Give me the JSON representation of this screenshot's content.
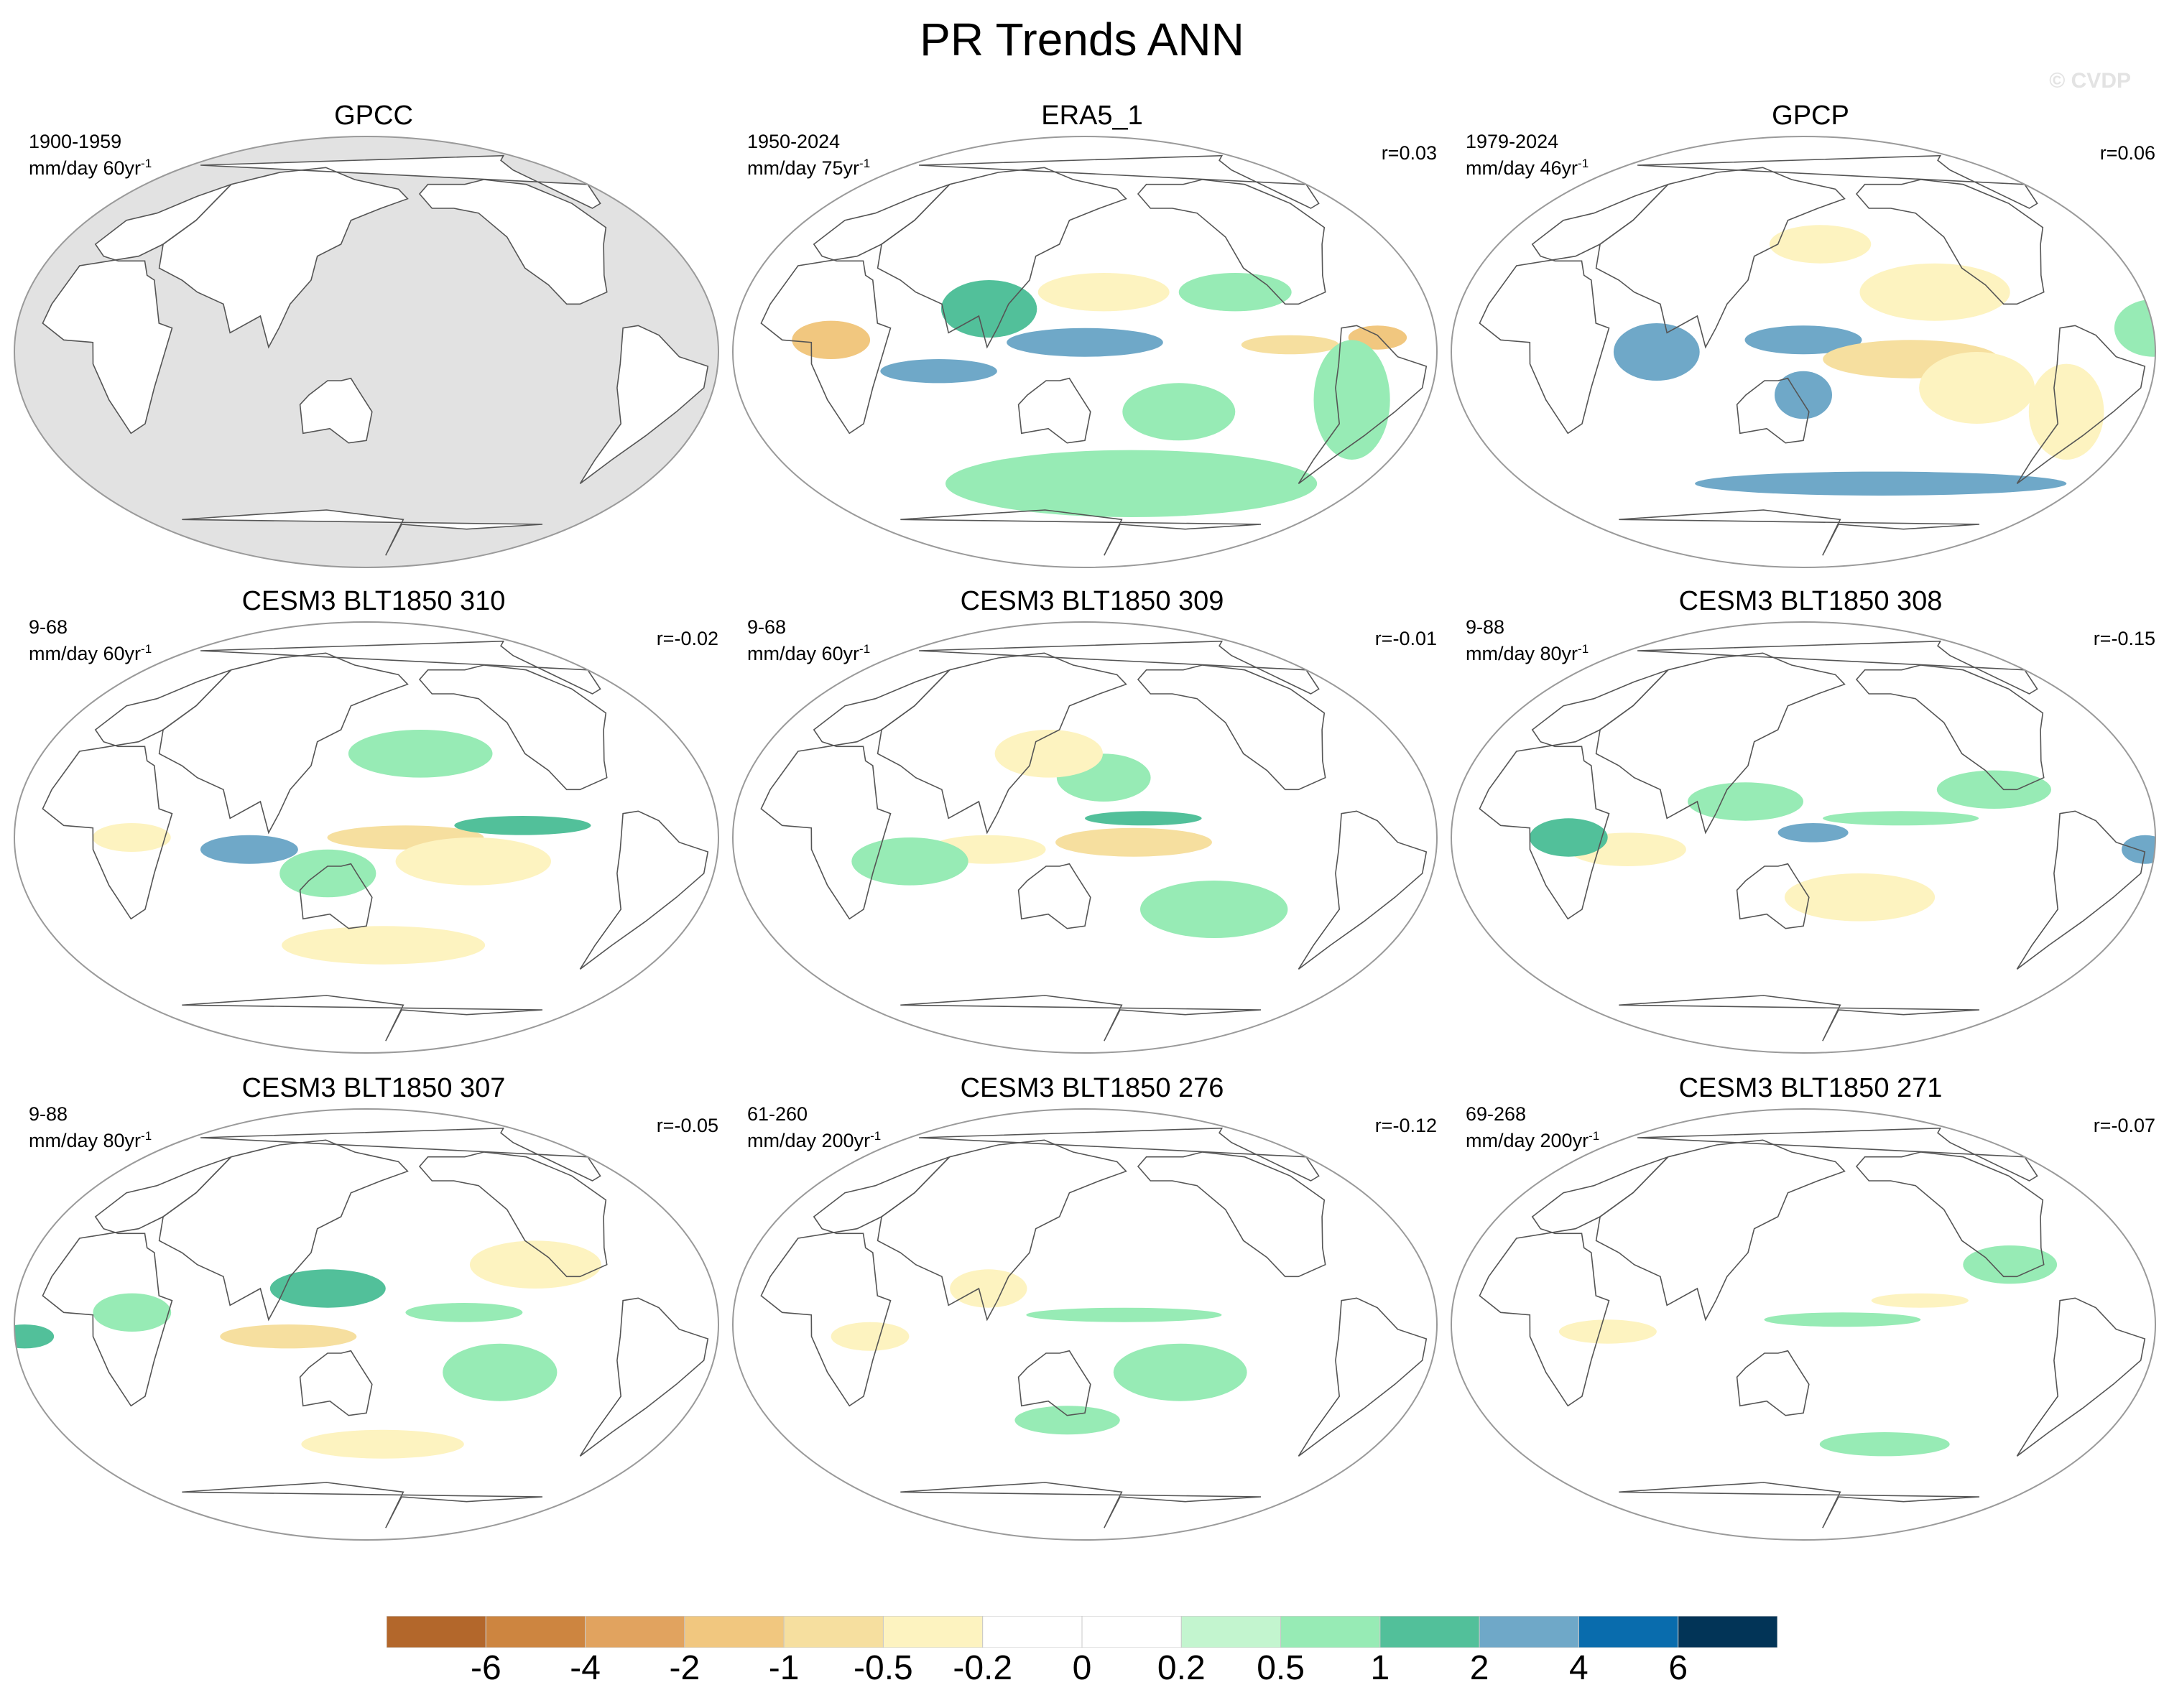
{
  "title": "PR Trends ANN",
  "watermark": "© CVDP",
  "colors": {
    "ocean_fill": "#ffffff",
    "missing_fill": "#e2e2e2",
    "coast": "#555555",
    "frame": "#9a9a9a"
  },
  "chart_data": {
    "type": "map-grid",
    "projection": "Robinson (Pacific-centered)",
    "variable": "precipitation trend",
    "season": "ANN",
    "colorbar": {
      "colors": [
        "#b3672b",
        "#cd8540",
        "#e1a35f",
        "#f1c77f",
        "#f6df9f",
        "#fdf3c0",
        "#ffffff",
        "#ffffff",
        "#c3f5cf",
        "#97ebb5",
        "#52c09a",
        "#6fa8c8",
        "#096cad",
        "#023457"
      ],
      "tick_labels": [
        "-6",
        "-4",
        "-2",
        "-1",
        "-0.5",
        "-0.2",
        "0",
        "0.2",
        "0.5",
        "1",
        "2",
        "4",
        "6"
      ],
      "levels": [
        -6,
        -4,
        -2,
        -1,
        -0.5,
        -0.2,
        0,
        0.2,
        0.5,
        1,
        2,
        4,
        6
      ]
    },
    "panels": [
      {
        "title": "GPCC",
        "period": "1900-1959",
        "units_prefix": "mm/day 60yr",
        "units_sup": "-1",
        "r": "",
        "land_only": true,
        "blobs": []
      },
      {
        "title": "ERA5_1",
        "period": "1950-2024",
        "units_prefix": "mm/day 75yr",
        "units_sup": "-1",
        "r": "r=0.03",
        "land_only": false,
        "blobs": [
          {
            "lon": 165,
            "lat": 3,
            "rx": 22,
            "ry": 3,
            "v": 4
          },
          {
            "lon": 150,
            "lat": 4,
            "rx": 40,
            "ry": 6,
            "v": 2
          },
          {
            "lon": 100,
            "lat": 18,
            "rx": 25,
            "ry": 12,
            "v": 1
          },
          {
            "lon": 75,
            "lat": -8,
            "rx": 30,
            "ry": 5,
            "v": 2
          },
          {
            "lon": 20,
            "lat": 5,
            "rx": 20,
            "ry": 8,
            "v": -2
          },
          {
            "lon": 255,
            "lat": 3,
            "rx": 25,
            "ry": 4,
            "v": -1
          },
          {
            "lon": 300,
            "lat": 6,
            "rx": 15,
            "ry": 5,
            "v": -2
          },
          {
            "lon": 160,
            "lat": 25,
            "rx": 35,
            "ry": 8,
            "v": -0.5
          },
          {
            "lon": 230,
            "lat": 25,
            "rx": 30,
            "ry": 8,
            "v": 0.5
          },
          {
            "lon": 180,
            "lat": -55,
            "rx": 120,
            "ry": 14,
            "v": 0.5
          },
          {
            "lon": 290,
            "lat": -20,
            "rx": 20,
            "ry": 25,
            "v": 0.5
          },
          {
            "lon": 200,
            "lat": -25,
            "rx": 30,
            "ry": 12,
            "v": 0.5
          }
        ]
      },
      {
        "title": "GPCP",
        "period": "1979-2024",
        "units_prefix": "mm/day 46yr",
        "units_sup": "-1",
        "r": "r=0.06",
        "land_only": false,
        "blobs": [
          {
            "lon": 150,
            "lat": 5,
            "rx": 30,
            "ry": 6,
            "v": 2
          },
          {
            "lon": 75,
            "lat": 0,
            "rx": 22,
            "ry": 12,
            "v": 2
          },
          {
            "lon": 205,
            "lat": -3,
            "rx": 45,
            "ry": 8,
            "v": -1
          },
          {
            "lon": 150,
            "lat": -18,
            "rx": 15,
            "ry": 10,
            "v": 2
          },
          {
            "lon": 240,
            "lat": -15,
            "rx": 30,
            "ry": 15,
            "v": -0.5
          },
          {
            "lon": 220,
            "lat": 25,
            "rx": 40,
            "ry": 12,
            "v": -0.5
          },
          {
            "lon": 160,
            "lat": 45,
            "rx": 30,
            "ry": 8,
            "v": -0.5
          },
          {
            "lon": 200,
            "lat": -55,
            "rx": 120,
            "ry": 5,
            "v": 2
          },
          {
            "lon": 330,
            "lat": 10,
            "rx": 20,
            "ry": 12,
            "v": 0.5
          },
          {
            "lon": 290,
            "lat": -25,
            "rx": 20,
            "ry": 20,
            "v": -0.5
          }
        ]
      },
      {
        "title": "CESM3 BLT1850 310",
        "period": "9-68",
        "units_prefix": "mm/day 60yr",
        "units_sup": "-1",
        "r": "r=-0.02",
        "land_only": false,
        "blobs": [
          {
            "lon": 90,
            "lat": -5,
            "rx": 25,
            "ry": 6,
            "v": 2
          },
          {
            "lon": 170,
            "lat": 0,
            "rx": 40,
            "ry": 5,
            "v": -1
          },
          {
            "lon": 205,
            "lat": -10,
            "rx": 40,
            "ry": 10,
            "v": -0.5
          },
          {
            "lon": 30,
            "lat": 0,
            "rx": 20,
            "ry": 6,
            "v": -0.5
          },
          {
            "lon": 230,
            "lat": 5,
            "rx": 35,
            "ry": 4,
            "v": 1
          },
          {
            "lon": 130,
            "lat": -15,
            "rx": 25,
            "ry": 10,
            "v": 0.5
          },
          {
            "lon": 180,
            "lat": 35,
            "rx": 40,
            "ry": 10,
            "v": 0.5
          },
          {
            "lon": 160,
            "lat": -45,
            "rx": 60,
            "ry": 8,
            "v": -0.5
          }
        ]
      },
      {
        "title": "CESM3 BLT1850 309",
        "period": "9-68",
        "units_prefix": "mm/day 60yr",
        "units_sup": "-1",
        "r": "r=-0.01",
        "land_only": false,
        "blobs": [
          {
            "lon": 175,
            "lat": -2,
            "rx": 40,
            "ry": 6,
            "v": -1
          },
          {
            "lon": 180,
            "lat": 8,
            "rx": 30,
            "ry": 3,
            "v": 1
          },
          {
            "lon": 100,
            "lat": -5,
            "rx": 30,
            "ry": 6,
            "v": -0.5
          },
          {
            "lon": 160,
            "lat": 25,
            "rx": 25,
            "ry": 10,
            "v": 0.5
          },
          {
            "lon": 130,
            "lat": 35,
            "rx": 30,
            "ry": 10,
            "v": -0.5
          },
          {
            "lon": 60,
            "lat": -10,
            "rx": 30,
            "ry": 10,
            "v": 0.5
          },
          {
            "lon": 220,
            "lat": -30,
            "rx": 40,
            "ry": 12,
            "v": 0.5
          }
        ]
      },
      {
        "title": "CESM3 BLT1850 308",
        "period": "9-88",
        "units_prefix": "mm/day 80yr",
        "units_sup": "-1",
        "r": "r=-0.15",
        "land_only": false,
        "blobs": [
          {
            "lon": 155,
            "lat": 2,
            "rx": 18,
            "ry": 4,
            "v": 2
          },
          {
            "lon": 120,
            "lat": 15,
            "rx": 30,
            "ry": 8,
            "v": 0.5
          },
          {
            "lon": 60,
            "lat": -5,
            "rx": 30,
            "ry": 7,
            "v": -0.5
          },
          {
            "lon": 30,
            "lat": 0,
            "rx": 20,
            "ry": 8,
            "v": 1
          },
          {
            "lon": 325,
            "lat": -5,
            "rx": 12,
            "ry": 6,
            "v": 2
          },
          {
            "lon": 200,
            "lat": 8,
            "rx": 40,
            "ry": 3,
            "v": 0.5
          },
          {
            "lon": 180,
            "lat": -25,
            "rx": 40,
            "ry": 10,
            "v": -0.5
          },
          {
            "lon": 250,
            "lat": 20,
            "rx": 30,
            "ry": 8,
            "v": 0.5
          }
        ]
      },
      {
        "title": "CESM3 BLT1850 307",
        "period": "9-88",
        "units_prefix": "mm/day 80yr",
        "units_sup": "-1",
        "r": "r=-0.05",
        "land_only": false,
        "blobs": [
          {
            "lon": 110,
            "lat": -5,
            "rx": 35,
            "ry": 5,
            "v": -1
          },
          {
            "lon": 200,
            "lat": 5,
            "rx": 30,
            "ry": 4,
            "v": 0.5
          },
          {
            "lon": 130,
            "lat": 15,
            "rx": 30,
            "ry": 8,
            "v": 1
          },
          {
            "lon": 30,
            "lat": 5,
            "rx": 20,
            "ry": 8,
            "v": 0.5
          },
          {
            "lon": 335,
            "lat": -5,
            "rx": 15,
            "ry": 5,
            "v": 1
          },
          {
            "lon": 240,
            "lat": 25,
            "rx": 35,
            "ry": 10,
            "v": -0.5
          },
          {
            "lon": 160,
            "lat": -50,
            "rx": 50,
            "ry": 6,
            "v": -0.5
          },
          {
            "lon": 220,
            "lat": -20,
            "rx": 30,
            "ry": 12,
            "v": 0.5
          }
        ]
      },
      {
        "title": "CESM3 BLT1850 276",
        "period": "61-260",
        "units_prefix": "mm/day 200yr",
        "units_sup": "-1",
        "r": "r=-0.12",
        "land_only": false,
        "blobs": [
          {
            "lon": 170,
            "lat": 4,
            "rx": 50,
            "ry": 3,
            "v": 0.5
          },
          {
            "lon": 100,
            "lat": 15,
            "rx": 20,
            "ry": 8,
            "v": -0.5
          },
          {
            "lon": 40,
            "lat": -5,
            "rx": 20,
            "ry": 6,
            "v": -0.5
          },
          {
            "lon": 200,
            "lat": -20,
            "rx": 35,
            "ry": 12,
            "v": 0.5
          },
          {
            "lon": 140,
            "lat": -40,
            "rx": 30,
            "ry": 6,
            "v": 0.5
          }
        ]
      },
      {
        "title": "CESM3 BLT1850 271",
        "period": "69-268",
        "units_prefix": "mm/day 200yr",
        "units_sup": "-1",
        "r": "r=-0.07",
        "land_only": false,
        "blobs": [
          {
            "lon": 170,
            "lat": 2,
            "rx": 40,
            "ry": 3,
            "v": 0.5
          },
          {
            "lon": 210,
            "lat": 10,
            "rx": 25,
            "ry": 3,
            "v": -0.5
          },
          {
            "lon": 50,
            "lat": -3,
            "rx": 25,
            "ry": 5,
            "v": -0.5
          },
          {
            "lon": 200,
            "lat": -50,
            "rx": 40,
            "ry": 5,
            "v": 0.5
          },
          {
            "lon": 260,
            "lat": 25,
            "rx": 25,
            "ry": 8,
            "v": 0.5
          }
        ]
      }
    ]
  }
}
